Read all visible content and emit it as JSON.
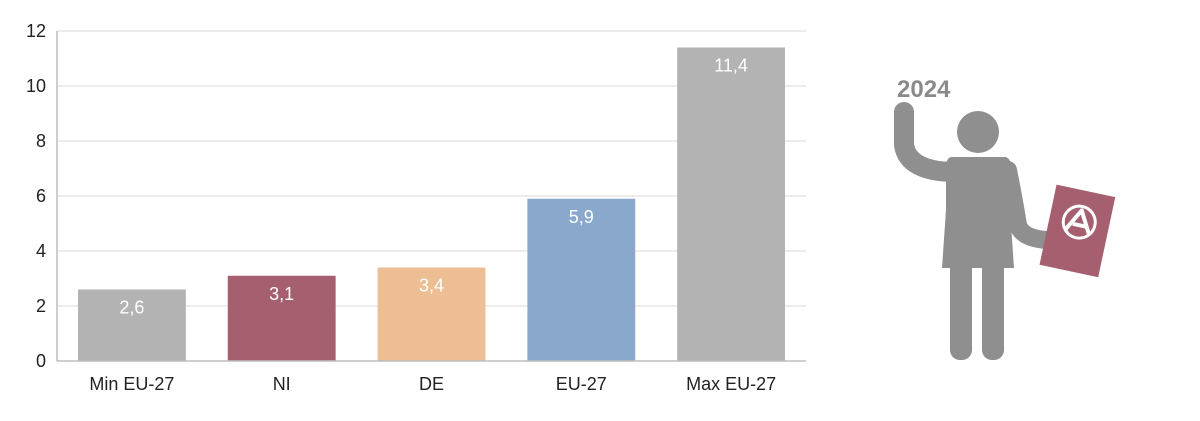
{
  "chart_data": {
    "type": "bar",
    "categories": [
      "Min EU-27",
      "NI",
      "DE",
      "EU-27",
      "Max EU-27"
    ],
    "values": [
      2.6,
      3.1,
      3.4,
      5.9,
      11.4
    ],
    "data_labels": [
      "2,6",
      "3,1",
      "3,4",
      "5,9",
      "11,4"
    ],
    "bar_colors": [
      "#b3b3b3",
      "#a65f6e",
      "#edbd94",
      "#89a8cc",
      "#b3b3b3"
    ],
    "ylim": [
      0,
      12
    ],
    "yticks": [
      0,
      2,
      4,
      6,
      8,
      10,
      12
    ],
    "grid": true,
    "title": "",
    "xlabel": "",
    "ylabel": ""
  },
  "illustration": {
    "year": "2024",
    "person_color": "#8f8f8f",
    "booklet_color": "#a65f6e",
    "icon": "person-holding-booklet-icon"
  }
}
